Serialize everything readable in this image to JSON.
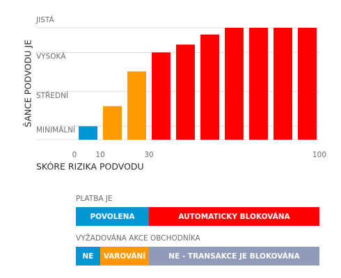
{
  "chart_data": {
    "type": "bar",
    "ylabel": "ŠANCE PODVODU JE",
    "xlabel": "SKÓRE RIZIKA PODVODU",
    "y_levels": [
      "MINIMÁLNÍ",
      "STŘEDNÍ",
      "VYSOKÁ",
      "JISTÁ"
    ],
    "ylim": [
      0,
      1
    ],
    "x_ticks": [
      {
        "value": 0,
        "label": "0"
      },
      {
        "value": 10,
        "label": "10"
      },
      {
        "value": 30,
        "label": "30"
      },
      {
        "value": 100,
        "label": "100"
      }
    ],
    "grid": true,
    "bars": [
      {
        "x": 5,
        "value": 0.12,
        "color": "#0096d6"
      },
      {
        "x": 15,
        "value": 0.3,
        "color": "#ff9900"
      },
      {
        "x": 25,
        "value": 0.61,
        "color": "#ff9900"
      },
      {
        "x": 35,
        "value": 0.78,
        "color": "#ff0000"
      },
      {
        "x": 45,
        "value": 0.85,
        "color": "#ff0000"
      },
      {
        "x": 55,
        "value": 0.94,
        "color": "#ff0000"
      },
      {
        "x": 65,
        "value": 1.0,
        "color": "#ff0000"
      },
      {
        "x": 75,
        "value": 1.0,
        "color": "#ff0000"
      },
      {
        "x": 85,
        "value": 1.0,
        "color": "#ff0000"
      },
      {
        "x": 95,
        "value": 1.0,
        "color": "#ff0000"
      }
    ]
  },
  "legend": {
    "payment": {
      "title": "PLATBA JE",
      "segments": [
        {
          "label": "POVOLENA",
          "from": 0,
          "to": 30,
          "color": "#0096d6"
        },
        {
          "label": "AUTOMATICKY BLOKOVÁNA",
          "from": 30,
          "to": 100,
          "color": "#ff0000"
        }
      ]
    },
    "action": {
      "title": "VYŽADOVÁNA AKCE OBCHODNÍKA",
      "segments": [
        {
          "label": "NE",
          "from": 0,
          "to": 10,
          "color": "#0096d6"
        },
        {
          "label": "VAROVÁNÍ",
          "from": 10,
          "to": 30,
          "color": "#ff9900"
        },
        {
          "label": "NE - TRANSAKCE JE BLOKOVÁNA",
          "from": 30,
          "to": 100,
          "color": "#8f9bb8"
        }
      ]
    }
  }
}
